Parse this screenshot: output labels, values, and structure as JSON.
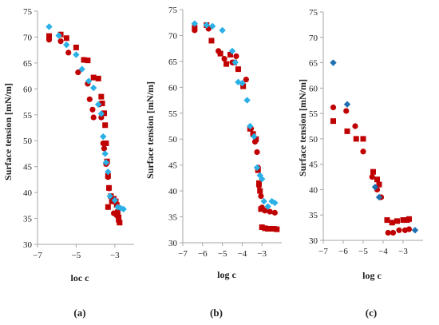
{
  "colors": {
    "series_a": "#c00000",
    "series_b": "#2ab0e6",
    "series_c": "#1f6fb0"
  },
  "chart_data": [
    {
      "type": "scatter",
      "panel": "(a)",
      "xlabel": "loc c",
      "ylabel": "Surface tension [mN/m]",
      "xlim": [
        -7,
        -2
      ],
      "ylim": [
        30,
        75
      ],
      "xticks": [
        "−7",
        "−5",
        "−3"
      ],
      "yticks": [
        "30",
        "35",
        "40",
        "45",
        "50",
        "55",
        "60",
        "65",
        "70",
        "75"
      ],
      "series": [
        {
          "marker": "square",
          "color": "#c00000",
          "points": [
            [
              -6.4,
              70.2
            ],
            [
              -5.8,
              70.5
            ],
            [
              -5.5,
              69.8
            ],
            [
              -5.0,
              68.0
            ],
            [
              -4.6,
              65.6
            ],
            [
              -4.4,
              65.5
            ],
            [
              -4.1,
              62.2
            ],
            [
              -3.85,
              62.0
            ],
            [
              -3.7,
              58.5
            ],
            [
              -3.65,
              57.2
            ],
            [
              -3.55,
              55.3
            ],
            [
              -3.5,
              53.0
            ],
            [
              -3.45,
              49.5
            ],
            [
              -3.4,
              46.0
            ],
            [
              -3.35,
              43.2
            ],
            [
              -3.3,
              40.9
            ],
            [
              -3.2,
              39.3
            ],
            [
              -3.05,
              38.8
            ],
            [
              -2.95,
              38.3
            ],
            [
              -2.9,
              37.6
            ],
            [
              -2.85,
              36.2
            ],
            [
              -2.8,
              35.2
            ],
            [
              -2.75,
              34.2
            ],
            [
              -3.15,
              38.3
            ],
            [
              -3.35,
              37.2
            ]
          ]
        },
        {
          "marker": "circle",
          "color": "#c00000",
          "points": [
            [
              -6.4,
              69.5
            ],
            [
              -5.8,
              69.2
            ],
            [
              -5.4,
              67.0
            ],
            [
              -4.9,
              63.2
            ],
            [
              -4.4,
              61.0
            ],
            [
              -4.3,
              58.0
            ],
            [
              -4.15,
              56.0
            ],
            [
              -4.1,
              54.5
            ],
            [
              -3.8,
              57.0
            ],
            [
              -3.7,
              54.5
            ],
            [
              -3.6,
              49.5
            ],
            [
              -3.55,
              48.5
            ],
            [
              -3.45,
              45.5
            ],
            [
              -3.35,
              43.0
            ],
            [
              -3.3,
              40.8
            ],
            [
              -3.05,
              36.0
            ],
            [
              -2.9,
              35.6
            ],
            [
              -2.8,
              34.5
            ]
          ]
        },
        {
          "marker": "diamond",
          "color": "#2ab0e6",
          "points": [
            [
              -6.4,
              72.0
            ],
            [
              -5.9,
              70.3
            ],
            [
              -5.5,
              68.5
            ],
            [
              -5.0,
              66.6
            ],
            [
              -4.7,
              63.8
            ],
            [
              -4.35,
              61.5
            ],
            [
              -4.1,
              60.2
            ],
            [
              -3.85,
              57.0
            ],
            [
              -3.7,
              55.2
            ],
            [
              -3.6,
              50.8
            ],
            [
              -3.5,
              47.5
            ],
            [
              -3.45,
              45.8
            ],
            [
              -3.35,
              44.0
            ],
            [
              -3.25,
              39.3
            ],
            [
              -3.0,
              38.5
            ],
            [
              -2.85,
              37.2
            ],
            [
              -2.7,
              37.0
            ],
            [
              -2.55,
              36.8
            ]
          ]
        }
      ]
    },
    {
      "type": "scatter",
      "panel": "(b)",
      "xlabel": "log c",
      "ylabel": "Surface tension [mN/m]",
      "xlim": [
        -7,
        -2
      ],
      "ylim": [
        30,
        75
      ],
      "xticks": [
        "−7",
        "−6",
        "−5",
        "−4",
        "−3"
      ],
      "yticks": [
        "30",
        "35",
        "40",
        "45",
        "50",
        "55",
        "60",
        "65",
        "70",
        "75"
      ],
      "series": [
        {
          "marker": "square",
          "color": "#c00000",
          "points": [
            [
              -6.4,
              71.5
            ],
            [
              -5.8,
              72.0
            ],
            [
              -5.55,
              69.0
            ],
            [
              -5.1,
              66.5
            ],
            [
              -4.8,
              64.5
            ],
            [
              -4.6,
              66.3
            ],
            [
              -4.4,
              64.8
            ],
            [
              -4.2,
              63.5
            ],
            [
              -3.95,
              60.2
            ],
            [
              -3.6,
              52.0
            ],
            [
              -3.45,
              51.0
            ],
            [
              -3.3,
              50.0
            ],
            [
              -3.2,
              44.0
            ],
            [
              -3.15,
              41.5
            ],
            [
              -3.1,
              40.0
            ],
            [
              -3.05,
              36.5
            ],
            [
              -3.0,
              33.0
            ],
            [
              -2.85,
              32.8
            ],
            [
              -2.7,
              32.7
            ],
            [
              -2.55,
              32.7
            ],
            [
              -2.4,
              32.7
            ],
            [
              -2.25,
              32.6
            ]
          ]
        },
        {
          "marker": "circle",
          "color": "#c00000",
          "points": [
            [
              -6.4,
              71.0
            ],
            [
              -5.7,
              71.3
            ],
            [
              -5.2,
              67.0
            ],
            [
              -4.9,
              65.5
            ],
            [
              -4.5,
              64.8
            ],
            [
              -4.3,
              66.0
            ],
            [
              -3.8,
              61.5
            ],
            [
              -3.55,
              52.0
            ],
            [
              -3.35,
              49.5
            ],
            [
              -3.25,
              47.5
            ],
            [
              -3.2,
              44.5
            ],
            [
              -3.15,
              41.0
            ],
            [
              -3.05,
              39.0
            ],
            [
              -3.0,
              36.8
            ],
            [
              -2.85,
              36.2
            ],
            [
              -2.6,
              36.0
            ],
            [
              -2.35,
              35.8
            ]
          ]
        },
        {
          "marker": "diamond",
          "color": "#2ab0e6",
          "points": [
            [
              -6.4,
              72.3
            ],
            [
              -5.8,
              72.0
            ],
            [
              -5.5,
              71.8
            ],
            [
              -5.0,
              71.0
            ],
            [
              -4.5,
              67.0
            ],
            [
              -4.35,
              64.8
            ],
            [
              -4.2,
              61.0
            ],
            [
              -4.0,
              60.8
            ],
            [
              -3.75,
              57.5
            ],
            [
              -3.6,
              52.5
            ],
            [
              -3.4,
              50.5
            ],
            [
              -3.25,
              44.5
            ],
            [
              -3.1,
              43.0
            ],
            [
              -3.0,
              42.3
            ],
            [
              -2.9,
              38.0
            ],
            [
              -2.7,
              37.0
            ],
            [
              -2.5,
              38.0
            ],
            [
              -2.35,
              37.7
            ]
          ]
        }
      ]
    },
    {
      "type": "scatter",
      "panel": "(c)",
      "xlabel": "log c",
      "ylabel": "Surface tension [mN/m]",
      "xlim": [
        -7,
        -2
      ],
      "ylim": [
        30,
        75
      ],
      "xticks": [
        "−7",
        "−6",
        "−5",
        "−4",
        "−3"
      ],
      "yticks": [
        "30",
        "35",
        "40",
        "45",
        "50",
        "55",
        "60",
        "65",
        "70",
        "75"
      ],
      "series": [
        {
          "marker": "square",
          "color": "#c00000",
          "points": [
            [
              -6.5,
              53.5
            ],
            [
              -5.8,
              51.5
            ],
            [
              -5.35,
              50.0
            ],
            [
              -5.0,
              50.0
            ],
            [
              -4.5,
              43.5
            ],
            [
              -4.3,
              42.0
            ],
            [
              -4.2,
              41.0
            ],
            [
              -3.8,
              34.0
            ],
            [
              -3.55,
              33.5
            ],
            [
              -3.3,
              33.8
            ],
            [
              -3.0,
              34.0
            ],
            [
              -2.8,
              34.0
            ],
            [
              -2.7,
              34.2
            ]
          ]
        },
        {
          "marker": "circle",
          "color": "#c00000",
          "points": [
            [
              -6.5,
              56.2
            ],
            [
              -5.85,
              55.5
            ],
            [
              -5.4,
              52.5
            ],
            [
              -5.0,
              47.5
            ],
            [
              -4.55,
              42.5
            ],
            [
              -4.3,
              40.0
            ],
            [
              -4.1,
              38.5
            ],
            [
              -3.75,
              31.5
            ],
            [
              -3.5,
              31.5
            ],
            [
              -3.2,
              32.0
            ],
            [
              -2.9,
              32.0
            ],
            [
              -2.7,
              32.2
            ]
          ]
        },
        {
          "marker": "diamond",
          "color": "#1f6fb0",
          "points": [
            [
              -6.5,
              65.0
            ],
            [
              -5.8,
              56.8
            ],
            [
              -4.4,
              40.5
            ],
            [
              -4.2,
              38.5
            ],
            [
              -2.4,
              32.0
            ]
          ]
        }
      ]
    }
  ]
}
